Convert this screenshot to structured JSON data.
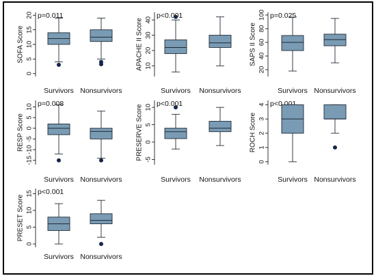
{
  "styles": {
    "box_fill": "#7a9bb4",
    "box_stroke": "#1e2a35",
    "whisker": "#1e2a35",
    "outlier": "#16264a",
    "panel_bg": "#ffffff",
    "frame": "#000000"
  },
  "chart_data": [
    {
      "type": "box",
      "ylabel": "SOFA Score",
      "annotation": "p=0.011",
      "categories": [
        "Survivors",
        "Nonsurvivors"
      ],
      "yticks": [
        "0",
        "5",
        "10",
        "15",
        "20"
      ],
      "ylim": [
        -1,
        21
      ],
      "boxes": [
        {
          "category": "Survivors",
          "min": 4,
          "q1": 10,
          "median": 12,
          "q3": 14,
          "max": 19,
          "outliers": [
            3
          ]
        },
        {
          "category": "Nonsurvivors",
          "min": 5,
          "q1": 11,
          "median": 12.5,
          "q3": 15,
          "max": 19,
          "outliers": [
            3.2,
            4
          ]
        }
      ]
    },
    {
      "type": "box",
      "ylabel": "APACHE II Score",
      "annotation": "p<0.001",
      "categories": [
        "Survivors",
        "Nonsurvivors"
      ],
      "yticks": [
        "10",
        "20",
        "30",
        "40"
      ],
      "ylim": [
        3,
        45
      ],
      "boxes": [
        {
          "category": "Survivors",
          "min": 6,
          "q1": 18,
          "median": 22,
          "q3": 27,
          "max": 40,
          "outliers": [
            42
          ]
        },
        {
          "category": "Nonsurvivors",
          "min": 10,
          "q1": 22,
          "median": 25,
          "q3": 30,
          "max": 42,
          "outliers": []
        }
      ]
    },
    {
      "type": "box",
      "ylabel": "SAPS II Score",
      "annotation": "p=0.025",
      "categories": [
        "Survivors",
        "Nonsurvivors"
      ],
      "yticks": [
        "20",
        "40",
        "60",
        "80",
        "100"
      ],
      "ylim": [
        10,
        104
      ],
      "boxes": [
        {
          "category": "Survivors",
          "min": 18,
          "q1": 48,
          "median": 60,
          "q3": 70,
          "max": 97,
          "outliers": []
        },
        {
          "category": "Nonsurvivors",
          "min": 30,
          "q1": 55,
          "median": 64,
          "q3": 72,
          "max": 95,
          "outliers": []
        }
      ]
    },
    {
      "type": "box",
      "ylabel": "RESP Score",
      "annotation": "p=0.008",
      "categories": [
        "Survivors",
        "Nonsurvivors"
      ],
      "yticks": [
        "-15",
        "-10",
        "-5",
        "0",
        "5",
        "10"
      ],
      "ylim": [
        -17,
        13
      ],
      "boxes": [
        {
          "category": "Survivors",
          "min": -12,
          "q1": -3,
          "median": 0,
          "q3": 2,
          "max": 11,
          "outliers": [
            -15
          ]
        },
        {
          "category": "Nonsurvivors",
          "min": -14,
          "q1": -5,
          "median": -1.5,
          "q3": 0,
          "max": 8,
          "outliers": [
            -15
          ]
        }
      ]
    },
    {
      "type": "box",
      "ylabel": "PRESERVE Score",
      "annotation": "p<0.001",
      "categories": [
        "Survivors",
        "Nonsurvivors"
      ],
      "yticks": [
        "-5",
        "0",
        "5",
        "10"
      ],
      "ylim": [
        -6.5,
        12
      ],
      "boxes": [
        {
          "category": "Survivors",
          "min": -2,
          "q1": 1,
          "median": 3,
          "q3": 4,
          "max": 8,
          "outliers": [
            10
          ]
        },
        {
          "category": "Nonsurvivors",
          "min": -1,
          "q1": 3,
          "median": 4,
          "q3": 6,
          "max": 10,
          "outliers": []
        }
      ]
    },
    {
      "type": "box",
      "ylabel": "ROCH Score",
      "annotation": "p<0.001",
      "categories": [
        "Survivors",
        "Nonsurvivors"
      ],
      "yticks": [
        "0",
        "1",
        "2",
        "3",
        "4"
      ],
      "ylim": [
        -0.2,
        4.3
      ],
      "boxes": [
        {
          "category": "Survivors",
          "min": 0,
          "q1": 2,
          "median": 3,
          "q3": 4,
          "max": 4,
          "outliers": []
        },
        {
          "category": "Nonsurvivors",
          "min": 2,
          "q1": 3,
          "median": 3,
          "q3": 4,
          "max": 4,
          "outliers": [
            1
          ]
        }
      ]
    },
    {
      "type": "box",
      "ylabel": "PRESET Score",
      "annotation": "p<0.001",
      "categories": [
        "Survivors",
        "Nonsurvivors"
      ],
      "yticks": [
        "0",
        "5",
        "10",
        "15"
      ],
      "ylim": [
        -1,
        16.5
      ],
      "boxes": [
        {
          "category": "Survivors",
          "min": 0,
          "q1": 4,
          "median": 6,
          "q3": 8,
          "max": 12,
          "outliers": []
        },
        {
          "category": "Nonsurvivors",
          "min": 2,
          "q1": 6,
          "median": 7,
          "q3": 9,
          "max": 13,
          "outliers": [
            0
          ]
        }
      ]
    }
  ]
}
